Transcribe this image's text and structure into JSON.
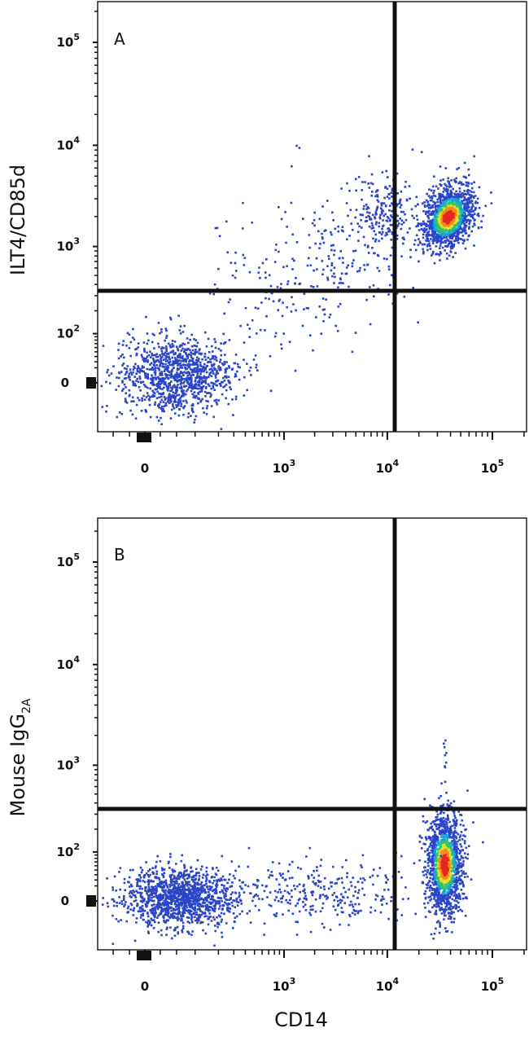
{
  "x_axis_title": "CD14",
  "chart_data": [
    {
      "panel": "A",
      "type": "scatter",
      "subtype": "flow cytometry density dot plot",
      "xlabel": "CD14",
      "ylabel": "ILT4/CD85d",
      "x_scale": "logicle",
      "y_scale": "logicle",
      "x_ticks": [
        "0",
        "10^3",
        "10^4",
        "10^5"
      ],
      "y_ticks": [
        "0",
        "10^2",
        "10^3",
        "10^4",
        "10^5"
      ],
      "quadrant_gate": {
        "x": 11000,
        "y": 280
      },
      "populations": [
        {
          "name_hidden": true,
          "center": [
            35000,
            1400
          ],
          "count": 1400,
          "note": "CD14+ ILT4+ dense cluster"
        },
        {
          "name_hidden": true,
          "center": [
            80,
            30
          ],
          "count": 1100,
          "note": "double-negative cluster"
        },
        {
          "name_hidden": true,
          "center": [
            1500,
            600
          ],
          "count": 350,
          "note": "bridging events"
        }
      ],
      "density_colors": [
        "#2b45c8",
        "#16a6d6",
        "#33c46b",
        "#e8df2b",
        "#f08a1c",
        "#e5261f"
      ]
    },
    {
      "panel": "B",
      "type": "scatter",
      "subtype": "flow cytometry density dot plot",
      "xlabel": "CD14",
      "ylabel": "Mouse IgG",
      "ylabel_subscript": "2A",
      "x_scale": "logicle",
      "y_scale": "logicle",
      "x_ticks": [
        "0",
        "10^3",
        "10^4",
        "10^5"
      ],
      "y_ticks": [
        "0",
        "10^2",
        "10^3",
        "10^4",
        "10^5"
      ],
      "quadrant_gate": {
        "x": 11000,
        "y": 280
      },
      "populations": [
        {
          "center": [
            33000,
            70
          ],
          "count": 1500,
          "note": "CD14+ isotype-negative cluster"
        },
        {
          "center": [
            80,
            10
          ],
          "count": 1300,
          "note": "double-negative cluster"
        },
        {
          "center": [
            1500,
            15
          ],
          "count": 300,
          "note": "bridging events"
        }
      ],
      "density_colors": [
        "#2b45c8",
        "#16a6d6",
        "#33c46b",
        "#e8df2b",
        "#f08a1c",
        "#e5261f"
      ]
    }
  ]
}
